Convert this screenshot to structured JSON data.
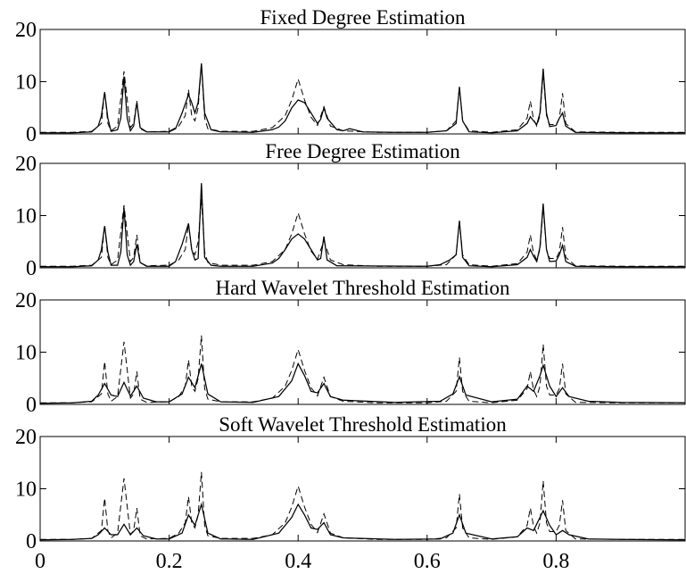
{
  "chart_data": [
    {
      "type": "line",
      "title": "Fixed Degree Estimation",
      "xlim": [
        0,
        1
      ],
      "ylim": [
        0,
        20
      ],
      "yticks": [
        0,
        10,
        20
      ],
      "xticks": [
        0,
        0.2,
        0.4,
        0.6,
        0.8
      ],
      "grid": false,
      "series": [
        {
          "style": "dashed",
          "x": [
            0,
            0.05,
            0.08,
            0.095,
            0.1,
            0.105,
            0.11,
            0.12,
            0.13,
            0.14,
            0.145,
            0.15,
            0.155,
            0.165,
            0.2,
            0.215,
            0.225,
            0.23,
            0.235,
            0.24,
            0.245,
            0.25,
            0.255,
            0.26,
            0.28,
            0.33,
            0.36,
            0.38,
            0.39,
            0.4,
            0.41,
            0.42,
            0.43,
            0.44,
            0.45,
            0.47,
            0.52,
            0.6,
            0.63,
            0.645,
            0.65,
            0.655,
            0.665,
            0.7,
            0.74,
            0.755,
            0.76,
            0.765,
            0.77,
            0.775,
            0.78,
            0.785,
            0.79,
            0.8,
            0.805,
            0.81,
            0.815,
            0.83,
            0.9,
            1.0
          ],
          "y": [
            0.3,
            0.3,
            0.5,
            2,
            8.2,
            2,
            0.6,
            1.5,
            12,
            1.2,
            2,
            6.3,
            1,
            0.4,
            0.5,
            1.5,
            3.5,
            8.5,
            3.5,
            2.5,
            5,
            13.2,
            3,
            1,
            0.5,
            0.5,
            1.2,
            3.5,
            6.5,
            10.5,
            6.5,
            3.2,
            1.6,
            5.2,
            1.5,
            0.6,
            0.3,
            0.3,
            0.6,
            2.5,
            9,
            2.5,
            0.6,
            0.3,
            0.8,
            3,
            6.3,
            2.8,
            1.5,
            3.5,
            11.5,
            3.5,
            1.8,
            1.8,
            3,
            7.8,
            2,
            0.4,
            0.3,
            0.3
          ]
        },
        {
          "style": "solid",
          "x": [
            0,
            0.05,
            0.08,
            0.09,
            0.095,
            0.1,
            0.105,
            0.11,
            0.12,
            0.125,
            0.13,
            0.135,
            0.14,
            0.145,
            0.15,
            0.155,
            0.165,
            0.2,
            0.21,
            0.22,
            0.23,
            0.235,
            0.24,
            0.245,
            0.25,
            0.255,
            0.265,
            0.28,
            0.33,
            0.36,
            0.37,
            0.38,
            0.39,
            0.4,
            0.41,
            0.42,
            0.43,
            0.435,
            0.44,
            0.445,
            0.46,
            0.47,
            0.48,
            0.5,
            0.55,
            0.6,
            0.63,
            0.645,
            0.65,
            0.655,
            0.665,
            0.7,
            0.74,
            0.755,
            0.76,
            0.765,
            0.77,
            0.775,
            0.78,
            0.785,
            0.79,
            0.8,
            0.805,
            0.81,
            0.815,
            0.83,
            0.9,
            1.0
          ],
          "y": [
            0.2,
            0.2,
            0.4,
            1.5,
            3.5,
            8,
            3,
            0.5,
            0.8,
            3,
            11,
            3,
            0.6,
            1.5,
            6,
            1.2,
            0.4,
            0.4,
            1,
            4,
            7.5,
            6,
            4,
            6,
            13.5,
            4,
            0.8,
            0.4,
            0.3,
            0.8,
            1.3,
            2.5,
            5,
            6.5,
            6,
            4,
            2,
            2.8,
            5,
            3,
            0.8,
            0.6,
            1,
            0.4,
            0.3,
            0.3,
            0.6,
            2,
            9,
            2.5,
            0.4,
            0.2,
            0.6,
            2,
            3.3,
            2.5,
            1.8,
            4,
            12.5,
            4,
            1.4,
            1.6,
            3,
            4,
            1.5,
            0.3,
            0.2,
            0.2
          ]
        }
      ]
    },
    {
      "type": "line",
      "title": "Free Degree Estimation",
      "xlim": [
        0,
        1
      ],
      "ylim": [
        0,
        20
      ],
      "yticks": [
        0,
        10,
        20
      ],
      "xticks": [
        0,
        0.2,
        0.4,
        0.6,
        0.8
      ],
      "grid": false,
      "series": [
        {
          "style": "dashed",
          "x": [
            0,
            0.05,
            0.08,
            0.095,
            0.1,
            0.105,
            0.11,
            0.12,
            0.13,
            0.14,
            0.145,
            0.15,
            0.155,
            0.165,
            0.2,
            0.215,
            0.225,
            0.23,
            0.235,
            0.24,
            0.245,
            0.25,
            0.255,
            0.26,
            0.28,
            0.33,
            0.36,
            0.38,
            0.39,
            0.4,
            0.41,
            0.42,
            0.43,
            0.44,
            0.45,
            0.47,
            0.52,
            0.6,
            0.63,
            0.645,
            0.65,
            0.655,
            0.665,
            0.7,
            0.74,
            0.755,
            0.76,
            0.765,
            0.77,
            0.775,
            0.78,
            0.785,
            0.79,
            0.8,
            0.805,
            0.81,
            0.815,
            0.83,
            0.9,
            1.0
          ],
          "y": [
            0.3,
            0.3,
            0.5,
            2,
            8.2,
            2,
            0.6,
            1.5,
            12,
            1.2,
            2,
            6.3,
            1,
            0.4,
            0.5,
            1.5,
            3.5,
            8.5,
            3.5,
            2.5,
            5,
            13.2,
            3,
            1,
            0.5,
            0.5,
            1.2,
            3.5,
            6.5,
            10.5,
            6.5,
            3.2,
            1.6,
            5.2,
            1.5,
            0.6,
            0.3,
            0.3,
            0.6,
            2.5,
            9,
            2.5,
            0.6,
            0.3,
            0.8,
            3,
            6.3,
            2.8,
            1.5,
            3.5,
            11.5,
            3.5,
            1.8,
            1.8,
            3,
            7.8,
            2,
            0.4,
            0.3,
            0.3
          ]
        },
        {
          "style": "solid",
          "x": [
            0,
            0.05,
            0.08,
            0.09,
            0.095,
            0.1,
            0.105,
            0.11,
            0.12,
            0.125,
            0.13,
            0.135,
            0.14,
            0.145,
            0.15,
            0.155,
            0.165,
            0.2,
            0.21,
            0.22,
            0.23,
            0.235,
            0.24,
            0.245,
            0.25,
            0.255,
            0.265,
            0.28,
            0.33,
            0.36,
            0.37,
            0.38,
            0.39,
            0.4,
            0.41,
            0.42,
            0.43,
            0.435,
            0.44,
            0.445,
            0.46,
            0.6,
            0.62,
            0.635,
            0.645,
            0.65,
            0.655,
            0.665,
            0.7,
            0.74,
            0.755,
            0.76,
            0.765,
            0.77,
            0.775,
            0.78,
            0.785,
            0.79,
            0.8,
            0.805,
            0.81,
            0.815,
            0.83,
            0.9,
            1.0
          ],
          "y": [
            0.2,
            0.2,
            0.4,
            1.5,
            3.5,
            8,
            3,
            0.5,
            0.5,
            3,
            11.5,
            2.5,
            0.5,
            1.2,
            4.5,
            1,
            0.3,
            0.3,
            1.2,
            4.5,
            8.5,
            3.5,
            1.5,
            1.8,
            16.2,
            2,
            0.5,
            0.3,
            0.3,
            0.9,
            1.8,
            3.5,
            5.5,
            6.5,
            5.5,
            3.5,
            1.5,
            1.8,
            6,
            1.5,
            0.4,
            0.3,
            0.6,
            1.5,
            2.5,
            9,
            2,
            0.4,
            0.2,
            0.6,
            2,
            3.5,
            2.2,
            1.2,
            4,
            12.3,
            3.5,
            1.2,
            1.3,
            2.5,
            4.3,
            1.2,
            0.3,
            0.2,
            0.2
          ]
        }
      ]
    },
    {
      "type": "line",
      "title": "Hard Wavelet Threshold Estimation",
      "xlim": [
        0,
        1
      ],
      "ylim": [
        0,
        20
      ],
      "yticks": [
        0,
        10,
        20
      ],
      "xticks": [
        0,
        0.2,
        0.4,
        0.6,
        0.8
      ],
      "grid": false,
      "series": [
        {
          "style": "dashed",
          "x": [
            0,
            0.05,
            0.08,
            0.095,
            0.1,
            0.105,
            0.11,
            0.12,
            0.13,
            0.14,
            0.145,
            0.15,
            0.155,
            0.165,
            0.2,
            0.215,
            0.225,
            0.23,
            0.235,
            0.24,
            0.245,
            0.25,
            0.255,
            0.26,
            0.28,
            0.33,
            0.36,
            0.38,
            0.39,
            0.4,
            0.41,
            0.42,
            0.43,
            0.44,
            0.45,
            0.47,
            0.52,
            0.6,
            0.63,
            0.645,
            0.65,
            0.655,
            0.665,
            0.7,
            0.74,
            0.755,
            0.76,
            0.765,
            0.77,
            0.775,
            0.78,
            0.785,
            0.79,
            0.8,
            0.805,
            0.81,
            0.815,
            0.83,
            0.9,
            1.0
          ],
          "y": [
            0.3,
            0.3,
            0.5,
            2,
            8.2,
            2,
            0.6,
            1.5,
            12,
            1.2,
            2,
            6.3,
            1,
            0.4,
            0.5,
            1.5,
            3.5,
            8.5,
            3.5,
            2.5,
            5,
            13.2,
            3,
            1,
            0.5,
            0.5,
            1.2,
            3.5,
            6.5,
            10.5,
            6.5,
            3.2,
            1.6,
            5.2,
            1.5,
            0.6,
            0.3,
            0.3,
            0.6,
            2.5,
            9,
            2.5,
            0.6,
            0.3,
            0.8,
            3,
            6.3,
            2.8,
            1.5,
            3.5,
            11.5,
            3.5,
            1.8,
            1.8,
            3,
            7.8,
            2,
            0.4,
            0.3,
            0.3
          ]
        },
        {
          "style": "solid",
          "x": [
            0,
            0.05,
            0.08,
            0.09,
            0.1,
            0.11,
            0.12,
            0.13,
            0.14,
            0.15,
            0.16,
            0.18,
            0.2,
            0.22,
            0.23,
            0.24,
            0.25,
            0.26,
            0.28,
            0.33,
            0.37,
            0.39,
            0.4,
            0.41,
            0.42,
            0.43,
            0.44,
            0.45,
            0.47,
            0.55,
            0.62,
            0.64,
            0.65,
            0.66,
            0.7,
            0.74,
            0.755,
            0.765,
            0.775,
            0.78,
            0.79,
            0.8,
            0.81,
            0.82,
            0.85,
            0.9,
            1.0
          ],
          "y": [
            0.2,
            0.3,
            0.6,
            1.8,
            4,
            1.8,
            1.5,
            4.2,
            1.6,
            3.5,
            1.2,
            0.5,
            0.5,
            2,
            5.2,
            3.2,
            7.8,
            2,
            0.5,
            0.4,
            1.5,
            4.5,
            7.8,
            5.5,
            2.5,
            2.2,
            4,
            1.5,
            0.8,
            0.4,
            0.6,
            2,
            5.3,
            1.8,
            0.5,
            1,
            3.5,
            2.5,
            5.5,
            7.5,
            3.5,
            1.5,
            3.2,
            1.5,
            0.6,
            0.4,
            0.3
          ]
        }
      ]
    },
    {
      "type": "line",
      "title": "Soft Wavelet Threshold Estimation",
      "xlim": [
        0,
        1
      ],
      "ylim": [
        0,
        20
      ],
      "yticks": [
        0,
        10,
        20
      ],
      "xticks": [
        0,
        0.2,
        0.4,
        0.6,
        0.8
      ],
      "grid": false,
      "series": [
        {
          "style": "dashed",
          "x": [
            0,
            0.05,
            0.08,
            0.095,
            0.1,
            0.105,
            0.11,
            0.12,
            0.13,
            0.14,
            0.145,
            0.15,
            0.155,
            0.165,
            0.2,
            0.215,
            0.225,
            0.23,
            0.235,
            0.24,
            0.245,
            0.25,
            0.255,
            0.26,
            0.28,
            0.33,
            0.36,
            0.38,
            0.39,
            0.4,
            0.41,
            0.42,
            0.43,
            0.44,
            0.45,
            0.47,
            0.52,
            0.6,
            0.63,
            0.645,
            0.65,
            0.655,
            0.665,
            0.7,
            0.74,
            0.755,
            0.76,
            0.765,
            0.77,
            0.775,
            0.78,
            0.785,
            0.79,
            0.8,
            0.805,
            0.81,
            0.815,
            0.83,
            0.9,
            1.0
          ],
          "y": [
            0.3,
            0.3,
            0.5,
            2,
            8.2,
            2,
            0.6,
            1.5,
            12,
            1.2,
            2,
            6.3,
            1,
            0.4,
            0.5,
            1.5,
            3.5,
            8.5,
            3.5,
            2.5,
            5,
            13.2,
            3,
            1,
            0.5,
            0.5,
            1.2,
            3.5,
            6.5,
            10.5,
            6.5,
            3.2,
            1.6,
            5.2,
            1.5,
            0.6,
            0.3,
            0.3,
            0.6,
            2.5,
            9,
            2.5,
            0.6,
            0.3,
            0.8,
            3,
            6.3,
            2.8,
            1.5,
            3.5,
            11.5,
            3.5,
            1.8,
            1.8,
            3,
            7.8,
            2,
            0.4,
            0.3,
            0.3
          ]
        },
        {
          "style": "solid",
          "x": [
            0,
            0.05,
            0.08,
            0.09,
            0.1,
            0.11,
            0.12,
            0.13,
            0.14,
            0.15,
            0.16,
            0.18,
            0.2,
            0.22,
            0.23,
            0.24,
            0.25,
            0.26,
            0.28,
            0.33,
            0.37,
            0.39,
            0.4,
            0.41,
            0.42,
            0.43,
            0.44,
            0.45,
            0.47,
            0.55,
            0.62,
            0.64,
            0.65,
            0.66,
            0.7,
            0.74,
            0.755,
            0.765,
            0.775,
            0.78,
            0.79,
            0.8,
            0.81,
            0.82,
            0.85,
            0.9,
            1.0
          ],
          "y": [
            0.2,
            0.3,
            0.5,
            1.2,
            2.5,
            1.2,
            1.2,
            3.2,
            1.2,
            2.5,
            1,
            0.4,
            0.4,
            1.5,
            5,
            3,
            7,
            1.5,
            0.4,
            0.3,
            1.5,
            4.5,
            7,
            5,
            2.5,
            2.2,
            3.5,
            1.2,
            0.6,
            0.3,
            0.4,
            1.5,
            5,
            1.5,
            0.4,
            0.8,
            2.5,
            2,
            4.5,
            5.8,
            3,
            1.2,
            2,
            1.2,
            0.4,
            0.3,
            0.2
          ]
        }
      ]
    }
  ]
}
